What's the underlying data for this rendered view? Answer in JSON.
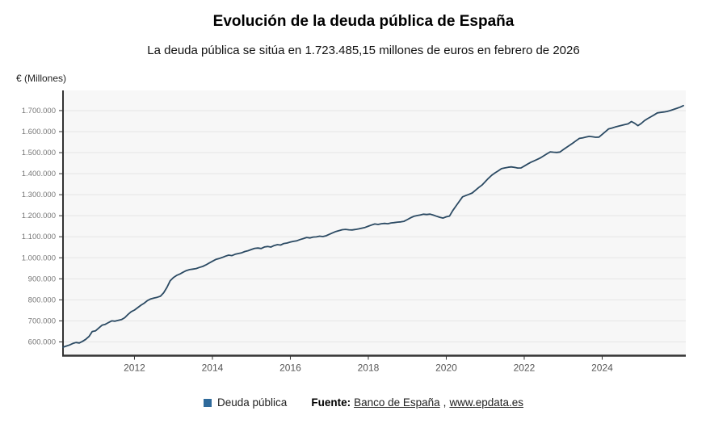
{
  "header": {
    "title": "Evolución de la deuda pública de España",
    "subtitle": "La deuda pública se sitúa en 1.723.485,15 millones de euros en febrero de 2026",
    "y_axis_unit": "€ (Millones)"
  },
  "legend": {
    "series_label": "Deuda pública",
    "marker_color": "#2f6a9b"
  },
  "footer": {
    "source_label": "Fuente:",
    "link_1": "Banco de España",
    "separator": ", ",
    "link_2": "www.epdata.es"
  },
  "chart_data": {
    "type": "line",
    "title": "Evolución de la deuda pública de España",
    "series_name": "Deuda pública",
    "unit": "millones de euros",
    "frequency": "monthly",
    "x_start": {
      "year": 2010,
      "month": 3
    },
    "x_end": {
      "year": 2026,
      "month": 2
    },
    "last_value": 1723485.15,
    "x_ticks": [
      2012,
      2014,
      2016,
      2018,
      2020,
      2022,
      2024
    ],
    "y_ticks": [
      600000,
      700000,
      800000,
      900000,
      1000000,
      1100000,
      1200000,
      1300000,
      1400000,
      1500000,
      1600000,
      1700000
    ],
    "y_tick_labels": [
      "600.000",
      "700.000",
      "800.000",
      "900.000",
      "1.000.000",
      "1.100.000",
      "1.200.000",
      "1.300.000",
      "1.400.000",
      "1.500.000",
      "1.600.000",
      "1.700.000"
    ],
    "ylim": [
      534600,
      1795800
    ],
    "grid": true,
    "legend_position": "bottom",
    "line_color": "#2b4a63",
    "plot_bg": "#f7f7f7",
    "grid_color": "#e5e5e5",
    "axis_color": "#333333",
    "values": [
      575000,
      580100,
      585300,
      592400,
      597100,
      594800,
      602500,
      612300,
      626000,
      649300,
      652300,
      665800,
      679200,
      683400,
      691900,
      700100,
      698400,
      702600,
      706300,
      715200,
      730400,
      743500,
      751400,
      763200,
      774500,
      784100,
      796300,
      804400,
      808900,
      812200,
      817200,
      833500,
      859400,
      891000,
      906200,
      916400,
      923300,
      931500,
      939200,
      943800,
      946100,
      948700,
      954200,
      958900,
      966300,
      975100,
      983600,
      991800,
      995900,
      1001300,
      1007500,
      1012600,
      1010400,
      1016800,
      1020200,
      1023700,
      1029900,
      1033800,
      1039400,
      1044700,
      1046300,
      1043900,
      1051200,
      1053600,
      1050800,
      1058100,
      1062400,
      1060700,
      1067900,
      1070100,
      1074600,
      1078300,
      1081100,
      1086500,
      1091200,
      1096800,
      1094300,
      1098600,
      1099400,
      1102700,
      1100900,
      1104600,
      1111800,
      1118700,
      1124900,
      1129300,
      1133600,
      1135100,
      1133200,
      1132400,
      1134800,
      1137500,
      1140900,
      1144100,
      1150600,
      1155900,
      1160700,
      1158300,
      1161800,
      1163400,
      1161900,
      1165600,
      1167200,
      1169800,
      1170900,
      1173400,
      1181700,
      1189900,
      1197100,
      1200800,
      1203900,
      1207400,
      1205600,
      1207800,
      1203100,
      1197600,
      1192800,
      1188900,
      1194800,
      1198600,
      1224400,
      1246300,
      1268100,
      1289600,
      1295900,
      1301700,
      1308300,
      1321200,
      1334400,
      1345800,
      1362100,
      1377900,
      1392700,
      1403800,
      1413600,
      1423900,
      1427100,
      1430400,
      1432300,
      1429800,
      1426900,
      1427200,
      1435900,
      1445300,
      1453800,
      1460700,
      1467900,
      1475300,
      1484800,
      1494600,
      1503700,
      1502100,
      1500900,
      1502800,
      1513900,
      1524700,
      1535200,
      1545800,
      1556900,
      1567800,
      1570600,
      1573900,
      1577200,
      1575400,
      1573100,
      1573800,
      1586900,
      1599800,
      1612900,
      1616700,
      1621800,
      1626100,
      1629800,
      1633700,
      1636900,
      1647800,
      1639600,
      1628300,
      1638400,
      1651900,
      1661700,
      1670800,
      1679600,
      1688900,
      1691200,
      1693400,
      1695800,
      1700300,
      1705600,
      1710900,
      1716400,
      1723485.15
    ]
  }
}
